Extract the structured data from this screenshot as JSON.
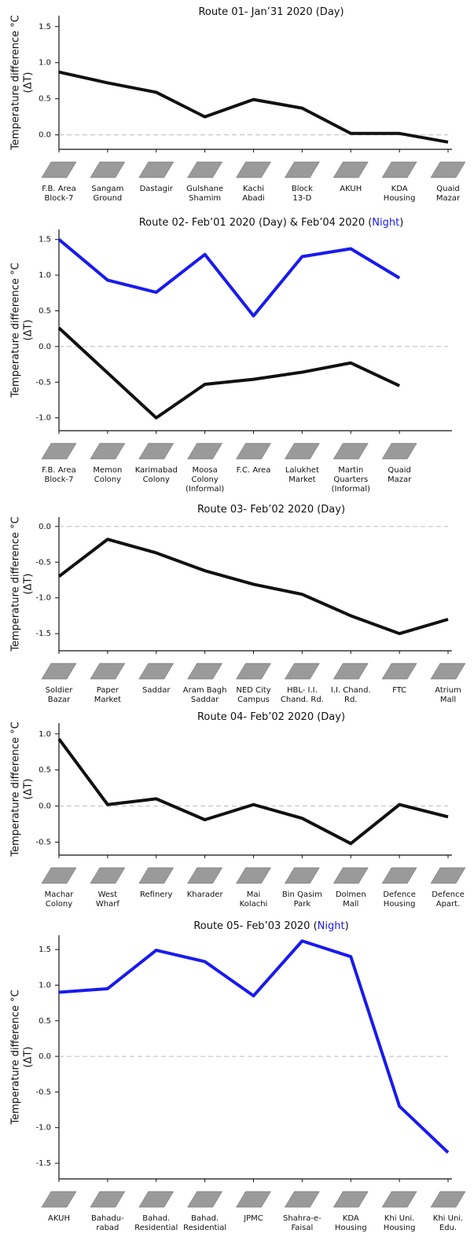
{
  "chart_data": [
    {
      "type": "line",
      "title": [
        {
          "text": "Route 01- Jan’31 2020 (Day)",
          "color": "#111111"
        }
      ],
      "ylabel": [
        "Temperature difference °C",
        "(ΔT)"
      ],
      "categories": [
        "F.B. Area\nBlock-7",
        "Sangam\nGround",
        "Dastagir",
        "Gulshane\nShamim",
        "Kachi\nAbadi",
        "Block\n13-D",
        "AKUH",
        "KDA\nHousing",
        "Quaid\nMazar"
      ],
      "series": [
        {
          "color": "#111111",
          "values": [
            0.87,
            0.72,
            0.59,
            0.25,
            0.49,
            0.37,
            0.02,
            0.02,
            -0.1
          ]
        }
      ],
      "ylim": [
        -0.2,
        1.65
      ],
      "yticks": [
        {
          "value": 0,
          "label": "0.0"
        },
        {
          "value": 0.5,
          "label": "0.5"
        },
        {
          "value": 1,
          "label": "1.0"
        },
        {
          "value": 1.5,
          "label": "1.5"
        }
      ],
      "zero_line": true
    },
    {
      "type": "line",
      "title": [
        {
          "text": "Route 02- Feb’01 2020 (Day) & Feb’04 2020 (",
          "color": "#111111"
        },
        {
          "text": "Night",
          "color": "#1a1aee"
        },
        {
          "text": ")",
          "color": "#111111"
        }
      ],
      "ylabel": [
        "Temperature difference °C",
        "(ΔT)"
      ],
      "categories": [
        "F.B. Area\nBlock-7",
        "Memon\nColony",
        "Karimabad\nColony",
        "Moosa\nColony\n(Informal)",
        "F.C. Area",
        "Lalukhet\nMarket",
        "Martin\nQuarters\n(Informal)",
        "Quaid\nMazar"
      ],
      "series": [
        {
          "color": "#1a1aee",
          "values": [
            1.5,
            0.93,
            0.76,
            1.29,
            0.43,
            1.26,
            1.37,
            0.96
          ]
        },
        {
          "color": "#111111",
          "values": [
            0.26,
            -0.37,
            -1.0,
            -0.53,
            -0.46,
            -0.36,
            -0.23,
            -0.55
          ]
        }
      ],
      "ylim": [
        -1.18,
        1.64
      ],
      "yticks": [
        {
          "value": -1,
          "label": "-1.0"
        },
        {
          "value": -0.5,
          "label": "-0.5"
        },
        {
          "value": 0,
          "label": "0.0"
        },
        {
          "value": 0.5,
          "label": "0.5"
        },
        {
          "value": 1,
          "label": "1.0"
        },
        {
          "value": 1.5,
          "label": "1.5"
        }
      ],
      "zero_line": true
    },
    {
      "type": "line",
      "title": [
        {
          "text": "Route 03- Feb’02 2020 (Day)",
          "color": "#111111"
        }
      ],
      "ylabel": [
        "Temperature difference °C",
        "(ΔT)"
      ],
      "categories": [
        "Soldier\nBazar",
        "Paper\nMarket",
        "Saddar",
        "Aram Bagh\nSaddar",
        "NED City\nCampus",
        "HBL- I.I.\nChand. Rd.",
        "I.I. Chand.\nRd.",
        "FTC",
        "Atrium\nMall"
      ],
      "series": [
        {
          "color": "#111111",
          "values": [
            -0.7,
            -0.18,
            -0.37,
            -0.62,
            -0.81,
            -0.95,
            -1.25,
            -1.5,
            -1.3
          ]
        }
      ],
      "ylim": [
        -1.74,
        0.13
      ],
      "yticks": [
        {
          "value": -1.5,
          "label": "-1.5"
        },
        {
          "value": -1,
          "label": "-1.0"
        },
        {
          "value": -0.5,
          "label": "-0.5"
        },
        {
          "value": 0,
          "label": "0.0"
        }
      ],
      "zero_line": true
    },
    {
      "type": "line",
      "title": [
        {
          "text": "Route 04- Feb’02 2020 (Day)",
          "color": "#111111"
        }
      ],
      "ylabel": [
        "Temperature difference °C",
        "(ΔT)"
      ],
      "categories": [
        "Machar\nColony",
        "West\nWharf",
        "Refinery",
        "Kharader",
        "Mai\nKolachi",
        "Bin Qasim\nPark",
        "Dolmen\nMall",
        "Defence\nHousing",
        "Defence\nApart."
      ],
      "series": [
        {
          "color": "#111111",
          "values": [
            0.93,
            0.02,
            0.1,
            -0.19,
            0.02,
            -0.17,
            -0.52,
            0.02,
            -0.15
          ]
        }
      ],
      "ylim": [
        -0.68,
        1.15
      ],
      "yticks": [
        {
          "value": -0.5,
          "label": "-0.5"
        },
        {
          "value": 0,
          "label": "0.0"
        },
        {
          "value": 0.5,
          "label": "0.5"
        },
        {
          "value": 1,
          "label": "1.0"
        }
      ],
      "zero_line": true
    },
    {
      "type": "line",
      "title": [
        {
          "text": "Route 05- Feb’03 2020 (",
          "color": "#111111"
        },
        {
          "text": "Night",
          "color": "#1a1aee"
        },
        {
          "text": ")",
          "color": "#111111"
        }
      ],
      "ylabel": [
        "Temperature difference °C",
        "(ΔT)"
      ],
      "categories": [
        "AKUH",
        "Bahadu-\nrabad",
        "Bahad.\nResidential",
        "Bahad.\nResidential",
        "JPMC",
        "Shahra-e-\nFaisal",
        "KDA\nHousing",
        "Khi Uni.\nHousing",
        "Khi Uni.\nEdu."
      ],
      "series": [
        {
          "color": "#1a1aee",
          "values": [
            0.9,
            0.95,
            1.49,
            1.33,
            0.85,
            1.62,
            1.4,
            -0.7,
            -1.35
          ]
        }
      ],
      "ylim": [
        -1.72,
        1.7
      ],
      "yticks": [
        {
          "value": -1.5,
          "label": "-1.5"
        },
        {
          "value": -1,
          "label": "-1.0"
        },
        {
          "value": -0.5,
          "label": "-0.5"
        },
        {
          "value": 0,
          "label": "0.0"
        },
        {
          "value": 0.5,
          "label": "0.5"
        },
        {
          "value": 1,
          "label": "1.0"
        },
        {
          "value": 1.5,
          "label": "1.5"
        }
      ],
      "zero_line": true
    }
  ]
}
